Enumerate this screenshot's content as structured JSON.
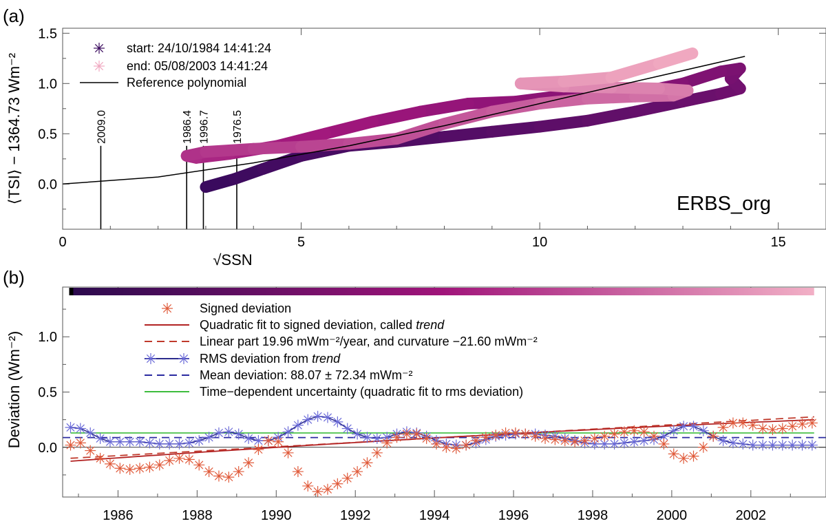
{
  "figure": {
    "panel_a_label": "(a)",
    "panel_b_label": "(b)"
  },
  "chart_data": [
    {
      "panel": "a",
      "type": "line",
      "xlabel": "√SSN",
      "ylabel": "⟨TSI⟩ − 1364.73 Wm⁻²",
      "xlim": [
        0,
        16
      ],
      "ylim": [
        -0.45,
        1.55
      ],
      "xticks": [
        0,
        5,
        10,
        15
      ],
      "yticks": [
        0.0,
        0.5,
        1.0,
        1.5
      ],
      "ytick_labels": [
        "0.0",
        "0.5",
        "1.0",
        "1.5"
      ],
      "dataset_label": "ERBS_org",
      "legend": {
        "start": "start: 24/10/1984 14:41:24",
        "end": "end:  05/08/2003 14:41:24",
        "reference": "Reference polynomial"
      },
      "colors": {
        "start": "#3a0a5e",
        "end": "#f0a8c0",
        "reference": "#000000"
      },
      "reference_polynomial": {
        "x": [
          0,
          2,
          4,
          6,
          8,
          10,
          12,
          14.3
        ],
        "y": [
          0.0,
          0.07,
          0.21,
          0.38,
          0.58,
          0.8,
          1.02,
          1.27
        ]
      },
      "cycle_minima": [
        {
          "x": 0.8,
          "label": "2009.0"
        },
        {
          "x": 2.6,
          "label": "1986.4"
        },
        {
          "x": 2.95,
          "label": "1996.7"
        },
        {
          "x": 3.65,
          "label": "1976.5"
        }
      ],
      "trajectory": {
        "x": [
          3.0,
          3.6,
          4.2,
          5.0,
          6.0,
          7.0,
          8.0,
          9.0,
          10.0,
          11.0,
          12.0,
          13.0,
          13.8,
          14.2,
          14.0,
          14.2,
          13.8,
          13.0,
          12.0,
          10.5,
          9.5,
          8.5,
          7.5,
          6.5,
          5.5,
          4.5,
          3.5,
          2.8,
          2.6,
          3.0,
          4.0,
          5.0,
          6.0,
          7.0,
          8.0,
          9.0,
          10.0,
          11.0,
          12.0,
          12.8,
          13.1,
          12.5,
          11.5,
          10.5,
          9.6,
          10.5,
          11.5,
          12.5,
          13.2
        ],
        "y": [
          -0.03,
          0.05,
          0.15,
          0.28,
          0.38,
          0.42,
          0.47,
          0.52,
          0.57,
          0.63,
          0.72,
          0.82,
          0.9,
          0.95,
          1.05,
          1.15,
          1.12,
          1.0,
          0.9,
          0.88,
          0.82,
          0.8,
          0.72,
          0.62,
          0.5,
          0.38,
          0.3,
          0.26,
          0.28,
          0.32,
          0.35,
          0.37,
          0.4,
          0.45,
          0.6,
          0.72,
          0.8,
          0.85,
          0.87,
          0.88,
          0.93,
          0.95,
          0.96,
          0.97,
          1.0,
          1.02,
          1.06,
          1.2,
          1.3
        ]
      }
    },
    {
      "panel": "b",
      "type": "scatter",
      "xlabel": "",
      "ylabel": "Deviation (Wm⁻²)",
      "xlim": [
        1984.6,
        2003.9
      ],
      "ylim": [
        -0.45,
        1.45
      ],
      "xticks": [
        1986,
        1988,
        1990,
        1992,
        1994,
        1996,
        1998,
        2000,
        2002
      ],
      "yticks": [
        0.0,
        0.5,
        1.0
      ],
      "ytick_labels": [
        "0.0",
        "0.5",
        "1.0"
      ],
      "legend": {
        "signed": "Signed deviation",
        "quadratic_prefix": "Quadratic fit to signed deviation, called ",
        "quadratic_em": "trend",
        "linear": "Linear part 19.96 mWm⁻²/year, and curvature −21.60 mWm⁻²",
        "rms_prefix": "RMS deviation from ",
        "rms_em": "trend",
        "mean": "Mean deviation: 88.07 ±  72.34 mWm⁻²",
        "uncertainty": "Time−dependent uncertainty (quadratic fit to rms deviation)"
      },
      "colors": {
        "signed": "#e05a3a",
        "trend": "#b22222",
        "linear": "#c0392b",
        "rms": "#2b2b8c",
        "rms_marker": "#6a6ad8",
        "mean": "#2a2aa0",
        "uncertainty": "#3cbc3c",
        "zero": "#000000"
      },
      "colorbar": {
        "x_start": 1984.8,
        "x_end": 2003.6,
        "from": "#2b0a4d",
        "via": "#a0147a",
        "to": "#f2b0c6"
      },
      "signed_deviation": {
        "x": [
          1984.8,
          1985.05,
          1985.3,
          1985.55,
          1985.8,
          1986.05,
          1986.3,
          1986.55,
          1986.8,
          1987.05,
          1987.3,
          1987.55,
          1987.8,
          1988.05,
          1988.3,
          1988.55,
          1988.8,
          1989.05,
          1989.3,
          1989.55,
          1989.8,
          1990.05,
          1990.3,
          1990.55,
          1990.8,
          1991.05,
          1991.3,
          1991.55,
          1991.8,
          1992.05,
          1992.3,
          1992.55,
          1992.8,
          1993.05,
          1993.3,
          1993.55,
          1993.8,
          1994.05,
          1994.3,
          1994.55,
          1994.8,
          1995.05,
          1995.3,
          1995.55,
          1995.8,
          1996.05,
          1996.3,
          1996.55,
          1996.8,
          1997.05,
          1997.3,
          1997.55,
          1997.8,
          1998.05,
          1998.3,
          1998.55,
          1998.8,
          1999.05,
          1999.3,
          1999.55,
          1999.8,
          2000.05,
          2000.3,
          2000.55,
          2000.8,
          2001.05,
          2001.3,
          2001.55,
          2001.8,
          2002.05,
          2002.3,
          2002.55,
          2002.8,
          2003.05,
          2003.3,
          2003.55
        ],
        "y": [
          0.02,
          0.04,
          -0.03,
          -0.1,
          -0.15,
          -0.19,
          -0.2,
          -0.19,
          -0.18,
          -0.16,
          -0.12,
          -0.1,
          -0.11,
          -0.16,
          -0.22,
          -0.26,
          -0.27,
          -0.22,
          -0.14,
          -0.02,
          0.06,
          0.05,
          -0.05,
          -0.22,
          -0.35,
          -0.4,
          -0.38,
          -0.33,
          -0.28,
          -0.22,
          -0.14,
          -0.05,
          0.04,
          0.09,
          0.12,
          0.12,
          0.08,
          0.03,
          0.0,
          -0.01,
          0.02,
          0.06,
          0.09,
          0.11,
          0.13,
          0.13,
          0.12,
          0.1,
          0.08,
          0.07,
          0.06,
          0.05,
          0.06,
          0.08,
          0.1,
          0.12,
          0.14,
          0.15,
          0.14,
          0.1,
          0.03,
          -0.06,
          -0.1,
          -0.08,
          0.0,
          0.1,
          0.18,
          0.22,
          0.22,
          0.2,
          0.17,
          0.16,
          0.17,
          0.19,
          0.21,
          0.22
        ]
      },
      "rms_deviation": {
        "x": [
          1984.8,
          1985.05,
          1985.3,
          1985.55,
          1985.8,
          1986.05,
          1986.3,
          1986.55,
          1986.8,
          1987.05,
          1987.3,
          1987.55,
          1987.8,
          1988.05,
          1988.3,
          1988.55,
          1988.8,
          1989.05,
          1989.3,
          1989.55,
          1989.8,
          1990.05,
          1990.3,
          1990.55,
          1990.8,
          1991.05,
          1991.3,
          1991.55,
          1991.8,
          1992.05,
          1992.3,
          1992.55,
          1992.8,
          1993.05,
          1993.3,
          1993.55,
          1993.8,
          1994.05,
          1994.3,
          1994.55,
          1994.8,
          1995.05,
          1995.3,
          1995.55,
          1995.8,
          1996.05,
          1996.3,
          1996.55,
          1996.8,
          1997.05,
          1997.3,
          1997.55,
          1997.8,
          1998.05,
          1998.3,
          1998.55,
          1998.8,
          1999.05,
          1999.3,
          1999.55,
          1999.8,
          2000.05,
          2000.3,
          2000.55,
          2000.8,
          2001.05,
          2001.3,
          2001.55,
          2001.8,
          2002.05,
          2002.3,
          2002.55,
          2002.8,
          2003.05,
          2003.3,
          2003.55
        ],
        "y": [
          0.18,
          0.17,
          0.13,
          0.08,
          0.05,
          0.05,
          0.05,
          0.05,
          0.04,
          0.03,
          0.03,
          0.03,
          0.04,
          0.06,
          0.09,
          0.13,
          0.14,
          0.12,
          0.08,
          0.06,
          0.06,
          0.09,
          0.14,
          0.2,
          0.25,
          0.28,
          0.27,
          0.23,
          0.17,
          0.12,
          0.09,
          0.08,
          0.09,
          0.12,
          0.14,
          0.13,
          0.1,
          0.06,
          0.03,
          0.02,
          0.02,
          0.04,
          0.07,
          0.1,
          0.11,
          0.12,
          0.12,
          0.12,
          0.11,
          0.1,
          0.08,
          0.06,
          0.04,
          0.03,
          0.03,
          0.03,
          0.04,
          0.05,
          0.06,
          0.07,
          0.1,
          0.15,
          0.19,
          0.19,
          0.15,
          0.1,
          0.06,
          0.04,
          0.03,
          0.02,
          0.02,
          0.02,
          0.02,
          0.02,
          0.02,
          0.02
        ]
      },
      "trend": {
        "a": 0.0883,
        "b": 0.01996,
        "c": -0.0003,
        "t0": 1994.2
      },
      "mean_deviation": 0.088,
      "uncertainty_level": 0.13
    }
  ]
}
